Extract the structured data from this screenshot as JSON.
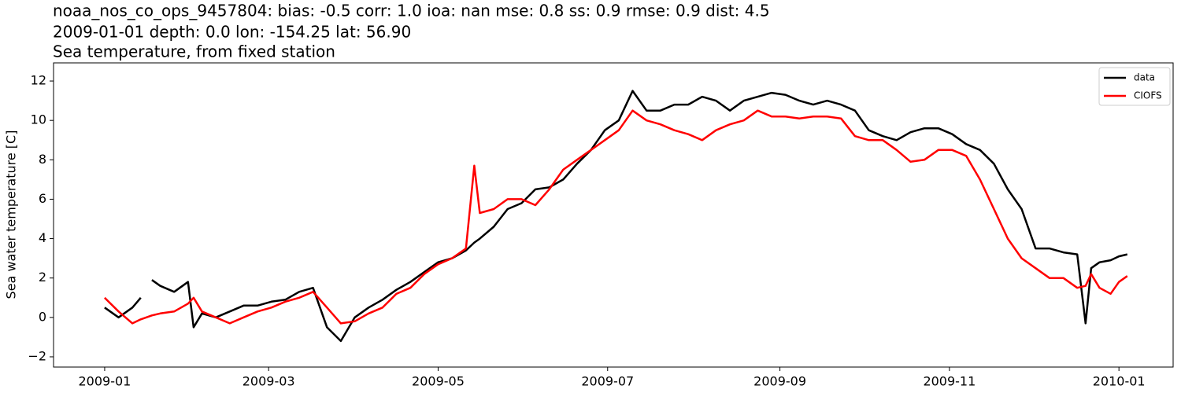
{
  "chart_data": {
    "type": "line",
    "title": [
      "noaa_nos_co_ops_9457804: bias: -0.5  corr: 1.0  ioa: nan  mse: 0.8  ss: 0.9  rmse: 0.9  dist: 4.5",
      "2009-01-01 depth: 0.0 lon: -154.25 lat: 56.90",
      "Sea temperature, from fixed station"
    ],
    "y_label": "Sea water temperature [C]",
    "x": [
      0,
      5,
      10,
      13,
      15,
      17,
      20,
      25,
      30,
      32,
      35,
      40,
      45,
      50,
      55,
      60,
      65,
      70,
      75,
      80,
      85,
      90,
      95,
      100,
      105,
      110,
      115,
      120,
      125,
      130,
      133,
      135,
      140,
      145,
      150,
      155,
      160,
      165,
      170,
      175,
      180,
      185,
      190,
      195,
      200,
      205,
      210,
      215,
      220,
      225,
      230,
      235,
      240,
      245,
      250,
      255,
      260,
      265,
      270,
      275,
      280,
      285,
      290,
      295,
      300,
      305,
      310,
      315,
      320,
      325,
      330,
      335,
      340,
      345,
      350,
      353,
      355,
      358,
      362,
      365,
      368
    ],
    "series": [
      {
        "name": "data",
        "color": "#000000",
        "values": [
          0.5,
          0.0,
          0.5,
          1.0,
          null,
          1.9,
          1.6,
          1.3,
          1.8,
          -0.5,
          0.2,
          0.0,
          0.3,
          0.6,
          0.6,
          0.8,
          0.9,
          1.3,
          1.5,
          -0.5,
          -1.2,
          0.0,
          0.5,
          0.9,
          1.4,
          1.8,
          2.3,
          2.8,
          3.0,
          3.4,
          3.8,
          4.0,
          4.6,
          5.5,
          5.8,
          6.5,
          6.6,
          7.0,
          7.8,
          8.5,
          9.5,
          10.0,
          11.5,
          10.5,
          10.5,
          10.8,
          10.8,
          11.2,
          11.0,
          10.5,
          11.0,
          11.2,
          11.4,
          11.3,
          11.0,
          10.8,
          11.0,
          10.8,
          10.5,
          9.5,
          9.2,
          9.0,
          9.4,
          9.6,
          9.6,
          9.3,
          8.8,
          8.5,
          7.8,
          6.5,
          5.5,
          3.5,
          3.5,
          3.3,
          3.2,
          -0.3,
          2.5,
          2.8,
          2.9,
          3.1,
          3.2
        ]
      },
      {
        "name": "CIOFS",
        "color": "#ff0000",
        "values": [
          1.0,
          0.3,
          -0.3,
          -0.1,
          0.0,
          0.1,
          0.2,
          0.3,
          0.7,
          1.0,
          0.3,
          0.0,
          -0.3,
          0.0,
          0.3,
          0.5,
          0.8,
          1.0,
          1.3,
          0.5,
          -0.3,
          -0.2,
          0.2,
          0.5,
          1.2,
          1.5,
          2.2,
          2.7,
          3.0,
          3.5,
          7.7,
          5.3,
          5.5,
          6.0,
          6.0,
          5.7,
          6.5,
          7.5,
          8.0,
          8.5,
          9.0,
          9.5,
          10.5,
          10.0,
          9.8,
          9.5,
          9.3,
          9.0,
          9.5,
          9.8,
          10.0,
          10.5,
          10.2,
          10.2,
          10.1,
          10.2,
          10.2,
          10.1,
          9.2,
          9.0,
          9.0,
          8.5,
          7.9,
          8.0,
          8.5,
          8.5,
          8.2,
          7.0,
          5.5,
          4.0,
          3.0,
          2.5,
          2.0,
          2.0,
          1.5,
          1.6,
          2.2,
          1.5,
          1.2,
          1.8,
          2.1
        ]
      }
    ],
    "xlim": [
      -18.4,
      384.5
    ],
    "xticks": [
      {
        "value": 0,
        "label": "2009-01"
      },
      {
        "value": 59,
        "label": "2009-03"
      },
      {
        "value": 120,
        "label": "2009-05"
      },
      {
        "value": 181,
        "label": "2009-07"
      },
      {
        "value": 243,
        "label": "2009-09"
      },
      {
        "value": 304,
        "label": "2009-11"
      },
      {
        "value": 365,
        "label": "2010-01"
      }
    ],
    "ylim": [
      -2.52,
      12.92
    ],
    "yticks": [
      {
        "value": -2,
        "label": "−2"
      },
      0,
      2,
      4,
      6,
      8,
      10,
      12
    ],
    "legend": "upper right"
  }
}
